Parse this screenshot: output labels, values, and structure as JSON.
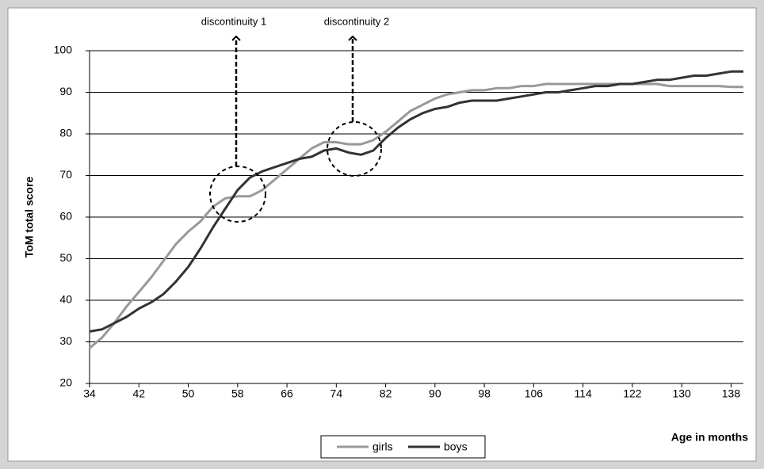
{
  "chart_data": {
    "type": "line",
    "x": [
      34,
      36,
      38,
      40,
      42,
      44,
      46,
      48,
      50,
      52,
      54,
      56,
      58,
      60,
      62,
      64,
      66,
      68,
      70,
      72,
      74,
      76,
      78,
      80,
      82,
      84,
      86,
      88,
      90,
      92,
      94,
      96,
      98,
      100,
      102,
      104,
      106,
      108,
      110,
      112,
      114,
      116,
      118,
      120,
      122,
      124,
      126,
      128,
      130,
      132,
      134,
      136,
      138,
      140
    ],
    "series": [
      {
        "name": "girls",
        "color": "#999999",
        "values": [
          28.5,
          31,
          34.5,
          38.5,
          42,
          45.5,
          49.5,
          53.5,
          56.5,
          59,
          62.5,
          64.5,
          65,
          65,
          66.5,
          69,
          71.5,
          74,
          76.5,
          78,
          78,
          77.5,
          77.5,
          78.5,
          80.5,
          83,
          85.5,
          87,
          88.5,
          89.5,
          90,
          90.5,
          90.5,
          91,
          91,
          91.5,
          91.5,
          92,
          92,
          92,
          92,
          92,
          92,
          92,
          92,
          92,
          92,
          91.5,
          91.5,
          91.5,
          91.5,
          91.5,
          91.3,
          91.3
        ]
      },
      {
        "name": "boys",
        "color": "#333333",
        "values": [
          32.5,
          33,
          34.5,
          36,
          38,
          39.5,
          41.5,
          44.5,
          48,
          52.5,
          57.5,
          62,
          66.5,
          69.5,
          71,
          72,
          73,
          74,
          74.5,
          76,
          76.5,
          75.5,
          75,
          76,
          79,
          81.5,
          83.5,
          85,
          86,
          86.5,
          87.5,
          88,
          88,
          88,
          88.5,
          89,
          89.5,
          90,
          90,
          90.5,
          91,
          91.5,
          91.5,
          92,
          92,
          92.5,
          93,
          93,
          93.5,
          94,
          94,
          94.5,
          95,
          95
        ]
      }
    ],
    "xlim": [
      34,
      140
    ],
    "xticks": [
      34,
      42,
      50,
      58,
      66,
      74,
      82,
      90,
      98,
      106,
      114,
      122,
      130,
      138
    ],
    "ylim": [
      20,
      100
    ],
    "yticks": [
      20,
      30,
      40,
      50,
      60,
      70,
      80,
      90,
      100
    ],
    "grid": true,
    "x_label": "Age in months",
    "y_label": "ToM total  score",
    "annotations": [
      "discontinuity 1",
      "discontinuity 2"
    ],
    "legend": "bottom"
  }
}
